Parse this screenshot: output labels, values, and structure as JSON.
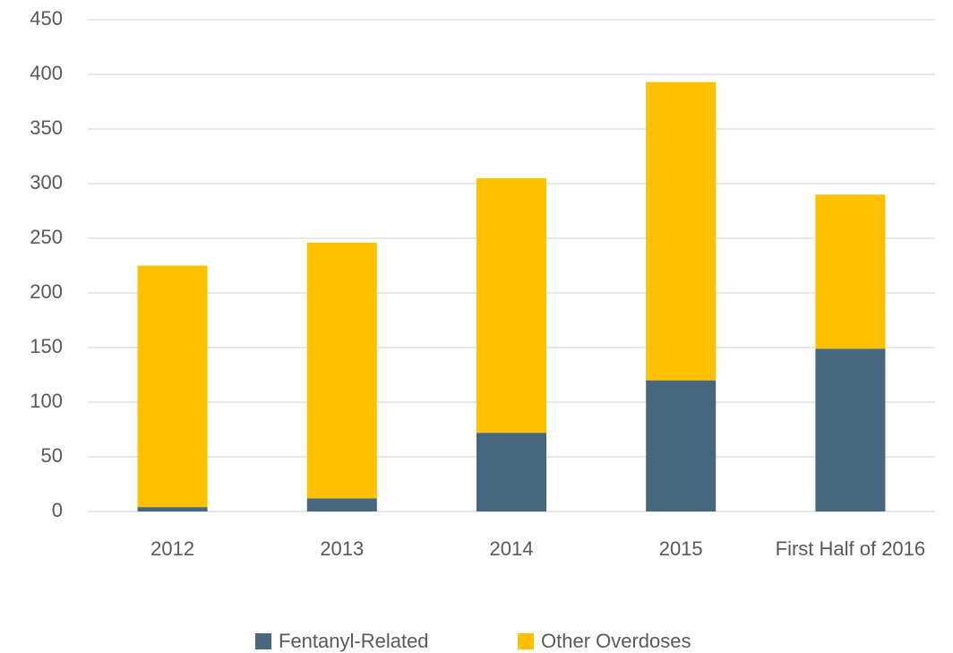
{
  "chart_data": {
    "type": "stacked_bar",
    "categories": [
      "2012",
      "2013",
      "2014",
      "2015",
      "First Half of 2016"
    ],
    "series": [
      {
        "name": "Fentanyl-Related",
        "color": "#46677e",
        "values": [
          4,
          12,
          72,
          120,
          149
        ]
      },
      {
        "name": "Other Overdoses",
        "color": "#ffc000",
        "values": [
          221,
          234,
          233,
          273,
          141
        ]
      }
    ],
    "ylim": [
      0,
      450
    ],
    "yticks": [
      0,
      50,
      100,
      150,
      200,
      250,
      300,
      350,
      400,
      450
    ],
    "grid": true,
    "legend": "bottom"
  }
}
